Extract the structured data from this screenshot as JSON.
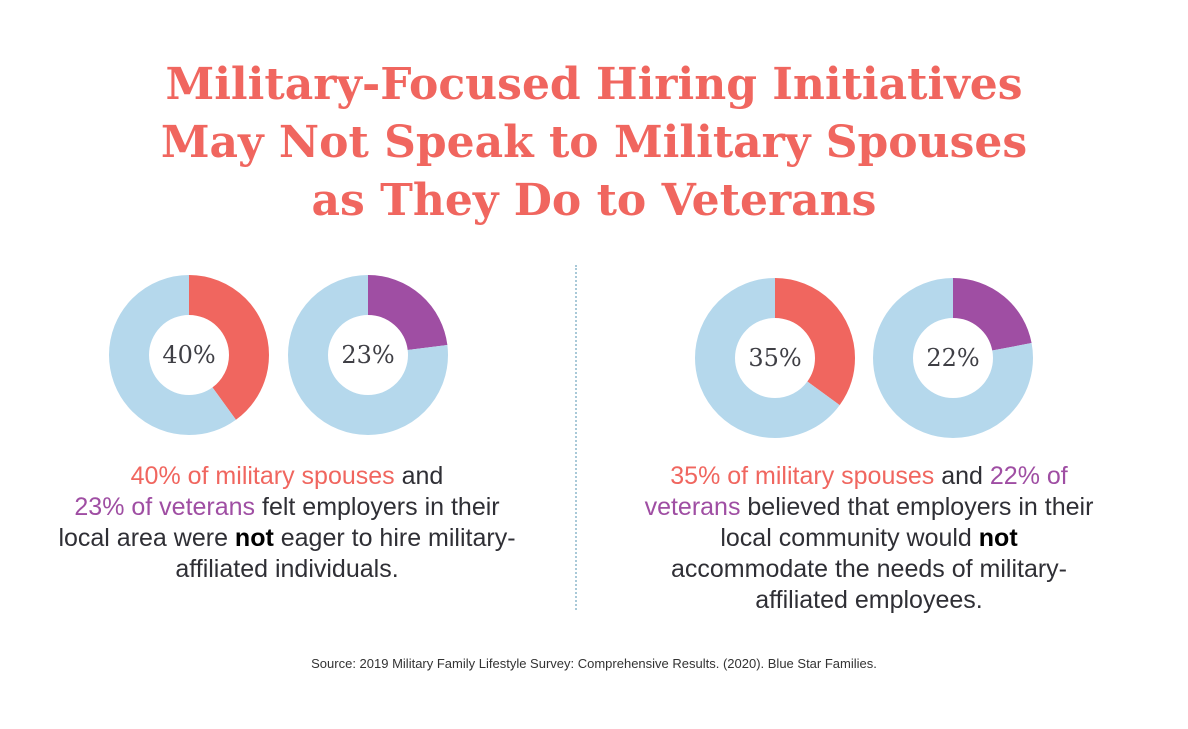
{
  "title": {
    "line1": "Military-Focused Hiring Initiatives",
    "line2": "May Not Speak to Military Spouses",
    "line3": "as They Do to Veterans"
  },
  "colors": {
    "spouses": "#f0665f",
    "veterans": "#9f4ea3",
    "ring": "#b5d8ec"
  },
  "chart_data": [
    {
      "type": "pie",
      "label": "40%",
      "values": [
        40,
        60
      ],
      "colors": [
        "#f0665f",
        "#b5d8ec"
      ]
    },
    {
      "type": "pie",
      "label": "23%",
      "values": [
        23,
        77
      ],
      "colors": [
        "#9f4ea3",
        "#b5d8ec"
      ]
    },
    {
      "type": "pie",
      "label": "35%",
      "values": [
        35,
        65
      ],
      "colors": [
        "#f0665f",
        "#b5d8ec"
      ]
    },
    {
      "type": "pie",
      "label": "22%",
      "values": [
        22,
        78
      ],
      "colors": [
        "#9f4ea3",
        "#b5d8ec"
      ]
    }
  ],
  "left_caption": {
    "spouses": "40% of military spouses",
    "and": " and",
    "veterans": "23% of veterans",
    "middle": " felt employers in their local area were ",
    "not": "not",
    "end": " eager to hire military-affiliated individuals."
  },
  "right_caption": {
    "spouses": "35% of military spouses",
    "and": " and ",
    "veterans": "22% of veterans",
    "middle": " believed that employers in their local community would ",
    "not": "not",
    "end": " accommodate the needs of military-affiliated employees."
  },
  "source": "Source: 2019 Military Family Lifestyle Survey: Comprehensive Results. (2020). Blue Star Families."
}
